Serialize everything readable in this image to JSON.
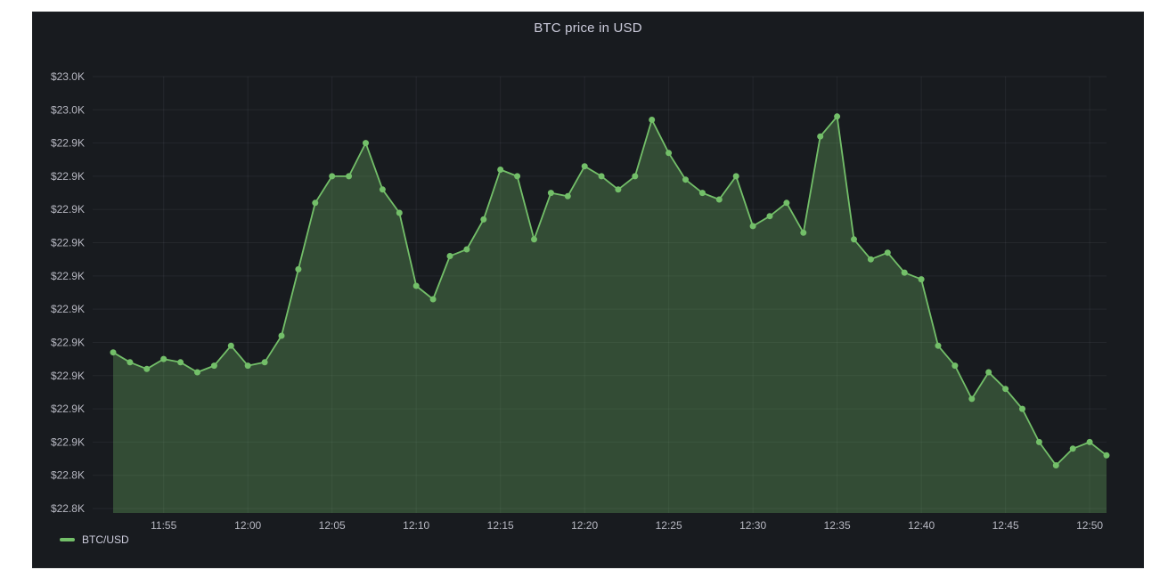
{
  "page": {
    "background": "#ffffff"
  },
  "panel": {
    "title": "BTC price in USD",
    "background": "#181b1f"
  },
  "legend": {
    "items": [
      {
        "label": "BTC/USD",
        "color": "#73bf69"
      }
    ]
  },
  "colors": {
    "grid": "rgba(204,204,220,0.07)",
    "tick_text": "#b7b8c2",
    "title_text": "#ccccdc",
    "line": "#73bf69",
    "fill": "rgba(115,191,105,0.3)"
  },
  "chart_data": {
    "type": "area",
    "title": "BTC price in USD",
    "legend_position": "bottom-left",
    "grid": true,
    "x": [
      "11:52",
      "11:53",
      "11:54",
      "11:55",
      "11:56",
      "11:57",
      "11:58",
      "11:59",
      "12:00",
      "12:01",
      "12:02",
      "12:03",
      "12:04",
      "12:05",
      "12:06",
      "12:07",
      "12:08",
      "12:09",
      "12:10",
      "12:11",
      "12:12",
      "12:13",
      "12:14",
      "12:15",
      "12:16",
      "12:17",
      "12:18",
      "12:19",
      "12:20",
      "12:21",
      "12:22",
      "12:23",
      "12:24",
      "12:25",
      "12:26",
      "12:27",
      "12:28",
      "12:29",
      "12:30",
      "12:31",
      "12:32",
      "12:33",
      "12:34",
      "12:35",
      "12:36",
      "12:37",
      "12:38",
      "12:39",
      "12:40",
      "12:41",
      "12:42",
      "12:43",
      "12:44",
      "12:45",
      "12:46",
      "12:47",
      "12:48",
      "12:49",
      "12:50",
      "12:51"
    ],
    "series": [
      {
        "name": "BTC/USD",
        "color": "#73bf69",
        "fill_opacity": 0.3,
        "values": [
          22887,
          22884,
          22882,
          22885,
          22884,
          22881,
          22883,
          22889,
          22883,
          22884,
          22892,
          22912,
          22932,
          22940,
          22940,
          22950,
          22936,
          22929,
          22907,
          22903,
          22916,
          22918,
          22927,
          22942,
          22940,
          22921,
          22935,
          22934,
          22943,
          22940,
          22936,
          22940,
          22957,
          22947,
          22939,
          22935,
          22933,
          22940,
          22925,
          22928,
          22932,
          22923,
          22952,
          22958,
          22921,
          22915,
          22917,
          22911,
          22909,
          22889,
          22883,
          22873,
          22881,
          22876,
          22870,
          22860,
          22853,
          22858,
          22860,
          22856
        ]
      }
    ],
    "x_tick_labels": [
      "11:55",
      "12:00",
      "12:05",
      "12:10",
      "12:15",
      "12:20",
      "12:25",
      "12:30",
      "12:35",
      "12:40",
      "12:45",
      "12:50"
    ],
    "x_tick_indices": [
      3,
      8,
      13,
      18,
      23,
      28,
      33,
      38,
      43,
      48,
      53,
      58
    ],
    "y_tick_labels": [
      "$23.0K",
      "$23.0K",
      "$22.9K",
      "$22.9K",
      "$22.9K",
      "$22.9K",
      "$22.9K",
      "$22.9K",
      "$22.9K",
      "$22.9K",
      "$22.9K",
      "$22.9K",
      "$22.8K",
      "$22.8K"
    ],
    "y_axis": {
      "top_tick_value": 22970,
      "bottom_tick_value": 22840,
      "tick_step": 10,
      "num_ticks": 14
    }
  }
}
